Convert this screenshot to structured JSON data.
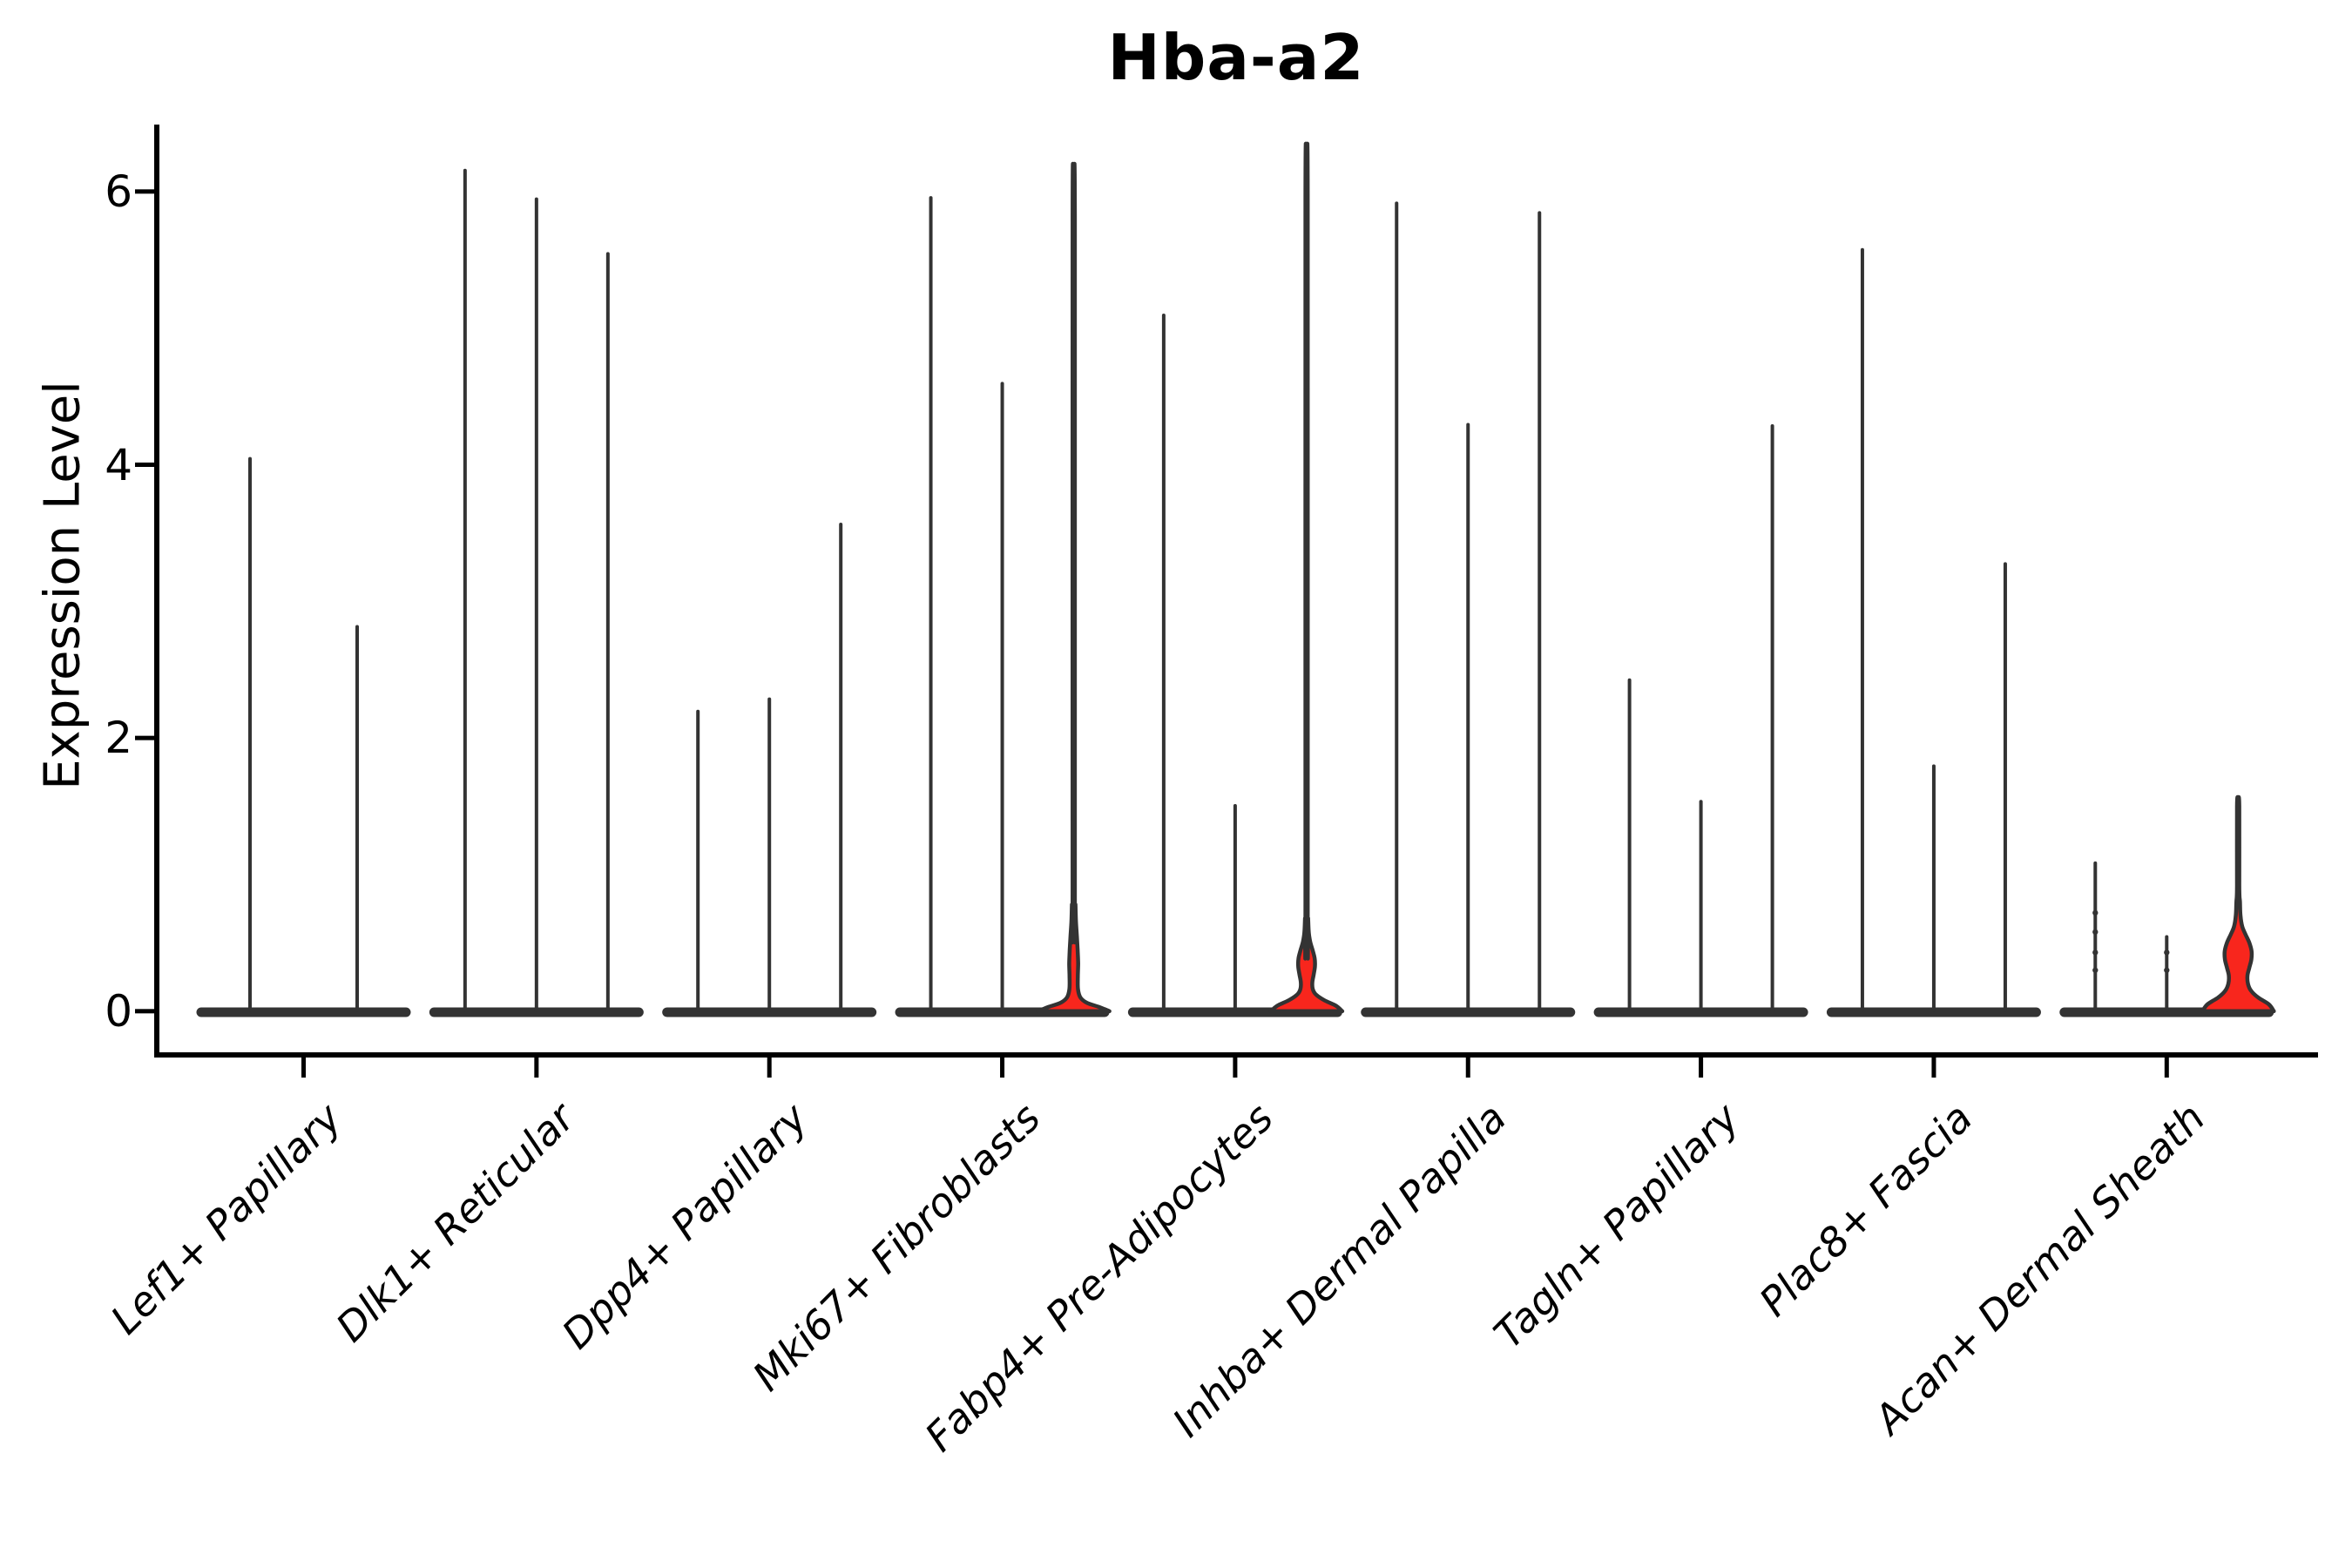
{
  "chart_data": {
    "type": "violin",
    "title": "Hba-a2",
    "ylabel": "Expression Level",
    "xlabel": "",
    "ylim": [
      -0.32,
      6.49
    ],
    "yticks": [
      0,
      2,
      4,
      6
    ],
    "grid": false,
    "legend": null,
    "x_label_rotation_deg": 45,
    "x_label_style": "italic",
    "categories": [
      "Lef1+ Papillary",
      "Dlk1+ Reticular",
      "Dpp4+ Papillary",
      "Mki67+ Fibroblasts",
      "Fabp4+ Pre-Adipocytes",
      "Inhba+ Dermal Papilla",
      "Tagln+ Papillary",
      "Plac8+ Fascia",
      "Acan+ Dermal Sheath"
    ],
    "groups": [
      {
        "category": "Lef1+ Papillary",
        "violins": [
          {
            "max_expression": 4.05
          },
          {
            "max_expression": 2.82
          }
        ]
      },
      {
        "category": "Dlk1+ Reticular",
        "violins": [
          {
            "max_expression": 6.16
          },
          {
            "max_expression": 5.95
          },
          {
            "max_expression": 5.55
          }
        ]
      },
      {
        "category": "Dpp4+ Papillary",
        "violins": [
          {
            "max_expression": 2.2
          },
          {
            "max_expression": 2.29
          },
          {
            "max_expression": 3.57
          }
        ]
      },
      {
        "category": "Mki67+ Fibroblasts",
        "violins": [
          {
            "max_expression": 5.96
          },
          {
            "max_expression": 4.6
          },
          {
            "max_expression": 5.87,
            "highlighted": true,
            "density_profile": [
              [
                0,
                1.0
              ],
              [
                0.03,
                0.72
              ],
              [
                0.06,
                0.38
              ],
              [
                0.1,
                0.19
              ],
              [
                0.16,
                0.12
              ],
              [
                0.25,
                0.115
              ],
              [
                0.35,
                0.125
              ],
              [
                0.45,
                0.11
              ],
              [
                0.55,
                0.09
              ],
              [
                0.65,
                0.065
              ],
              [
                0.78,
                0.05
              ]
            ]
          }
        ]
      },
      {
        "category": "Fabp4+ Pre-Adipocytes",
        "violins": [
          {
            "max_expression": 5.1
          },
          {
            "max_expression": 1.51
          },
          {
            "max_expression": 6.0,
            "highlighted": true,
            "density_profile": [
              [
                0,
                1.0
              ],
              [
                0.04,
                0.82
              ],
              [
                0.08,
                0.5
              ],
              [
                0.12,
                0.27
              ],
              [
                0.16,
                0.175
              ],
              [
                0.21,
                0.16
              ],
              [
                0.27,
                0.2
              ],
              [
                0.33,
                0.235
              ],
              [
                0.39,
                0.225
              ],
              [
                0.45,
                0.165
              ],
              [
                0.51,
                0.1
              ],
              [
                0.58,
                0.06
              ],
              [
                0.68,
                0.045
              ]
            ]
          }
        ]
      },
      {
        "category": "Inhba+ Dermal Papilla",
        "violins": [
          {
            "max_expression": 5.92
          },
          {
            "max_expression": 4.3
          },
          {
            "max_expression": 5.85
          }
        ]
      },
      {
        "category": "Tagln+ Papillary",
        "violins": [
          {
            "max_expression": 2.43
          },
          {
            "max_expression": 1.54
          },
          {
            "max_expression": 4.29
          }
        ]
      },
      {
        "category": "Plac8+ Fascia",
        "violins": [
          {
            "max_expression": 5.58
          },
          {
            "max_expression": 1.8
          },
          {
            "max_expression": 3.28
          }
        ]
      },
      {
        "category": "Acan+ Dermal Sheath",
        "violins": [
          {
            "max_expression": 1.09,
            "points": [
              0.72,
              0.58,
              0.43,
              0.3
            ]
          },
          {
            "max_expression": 0.55,
            "points": [
              0.43,
              0.3
            ]
          },
          {
            "max_expression": 1.55,
            "highlighted": true,
            "density_profile": [
              [
                0,
                1.0
              ],
              [
                0.05,
                0.86
              ],
              [
                0.1,
                0.56
              ],
              [
                0.15,
                0.36
              ],
              [
                0.2,
                0.275
              ],
              [
                0.26,
                0.26
              ],
              [
                0.32,
                0.315
              ],
              [
                0.38,
                0.37
              ],
              [
                0.44,
                0.375
              ],
              [
                0.5,
                0.315
              ],
              [
                0.56,
                0.21
              ],
              [
                0.62,
                0.115
              ],
              [
                0.7,
                0.065
              ],
              [
                0.8,
                0.05
              ]
            ]
          }
        ]
      }
    ],
    "colors": {
      "violin_outline": "#333333",
      "highlight_fill": "#f8261d",
      "axis": "#000000",
      "background": "#ffffff"
    }
  }
}
